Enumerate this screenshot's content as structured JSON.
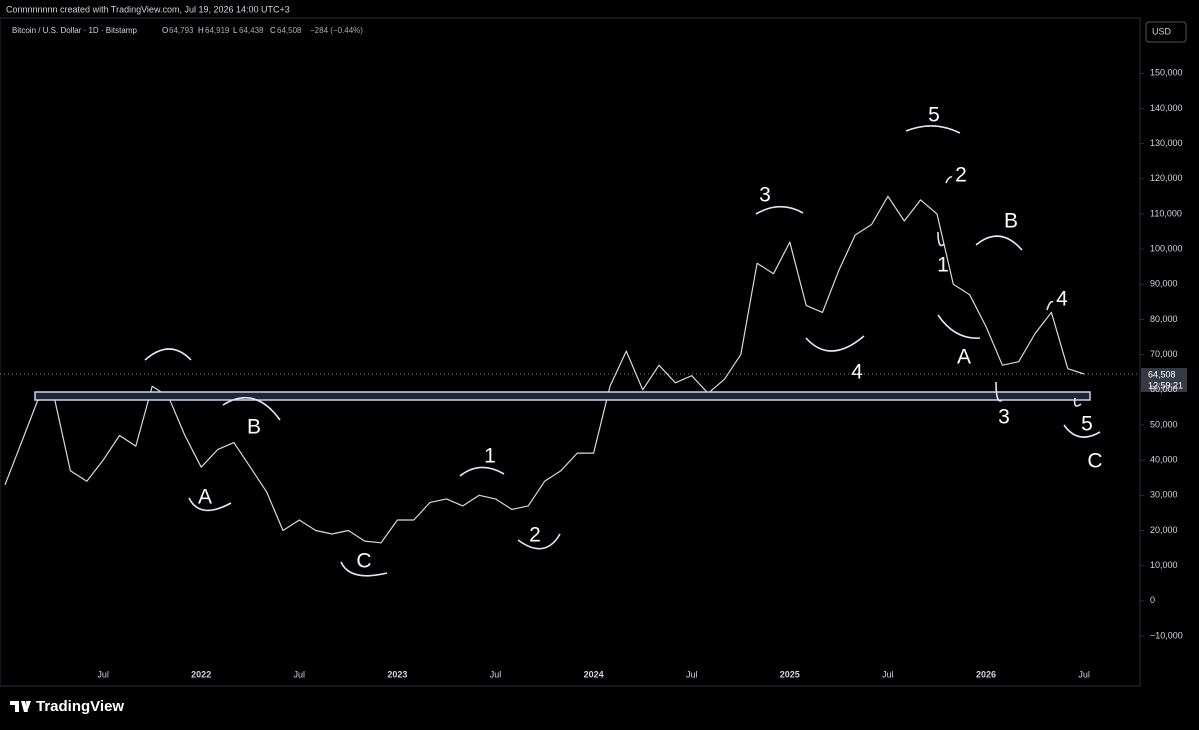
{
  "header": {
    "credit": "Connnnnnnn created with TradingView.com, Jul 19, 2026 14:00 UTC+3",
    "symbol": "Bitcoin / U.S. Dollar · 1D · Bitstamp",
    "ohlc": [
      "O",
      "64,793",
      "H",
      "64,919",
      "L",
      "64,438",
      "C",
      "64,508"
    ],
    "change": "−284 (−0.44%)",
    "currency": "USD",
    "last_price": "64,508",
    "countdown": "12:59:21"
  },
  "footer": {
    "brand": "TradingView"
  },
  "chart_data": {
    "type": "line",
    "categories": [
      null,
      null,
      null,
      null,
      null,
      null,
      "Jul",
      null,
      null,
      null,
      null,
      null,
      "2022",
      null,
      null,
      null,
      null,
      null,
      "Jul",
      null,
      null,
      null,
      null,
      null,
      "2023",
      null,
      null,
      null,
      null,
      null,
      "Jul",
      null,
      null,
      null,
      null,
      null,
      "2024",
      null,
      null,
      null,
      null,
      null,
      "Jul",
      null,
      null,
      null,
      null,
      null,
      "2025",
      null,
      null,
      null,
      null,
      null,
      "Jul",
      null,
      null,
      null,
      null,
      null,
      "2026",
      null,
      null,
      null,
      null,
      null,
      "Jul"
    ],
    "series": [
      {
        "name": "Bitcoin / U.S. Dollar",
        "color": "#d9d9d9",
        "values": [
          33000,
          45000,
          57000,
          58000,
          37000,
          34000,
          40000,
          47000,
          44000,
          61000,
          58000,
          47000,
          38000,
          43000,
          45000,
          38000,
          31000,
          20000,
          23000,
          20000,
          19000,
          20000,
          17000,
          16500,
          23000,
          23000,
          28000,
          29000,
          27000,
          30000,
          29000,
          26000,
          27000,
          34000,
          37000,
          42000,
          42000,
          61000,
          71000,
          60000,
          67000,
          62000,
          64000,
          59000,
          63000,
          70000,
          96000,
          93000,
          102000,
          84000,
          82000,
          94000,
          104000,
          107000,
          115000,
          108000,
          114000,
          110000,
          90000,
          87000,
          78000,
          67000,
          68000,
          76000,
          82000,
          66000,
          64500
        ]
      }
    ],
    "ylim": [
      -24200,
      165700
    ],
    "yticks": [
      {
        "value": -10000,
        "label": "−10,000"
      },
      0,
      {
        "value": 10000,
        "label": "10,000"
      },
      {
        "value": 20000,
        "label": "20,000"
      },
      {
        "value": 30000,
        "label": "30,000"
      },
      {
        "value": 40000,
        "label": "40,000"
      },
      {
        "value": 50000,
        "label": "50,000"
      },
      {
        "value": 60000,
        "label": "60,000"
      },
      {
        "value": 70000,
        "label": "70,000"
      },
      {
        "value": 80000,
        "label": "80,000"
      },
      {
        "value": 90000,
        "label": "90,000"
      },
      {
        "value": 100000,
        "label": "100,000"
      },
      {
        "value": 110000,
        "label": "110,000"
      },
      {
        "value": 120000,
        "label": "120,000"
      },
      {
        "value": 130000,
        "label": "130,000"
      },
      {
        "value": 140000,
        "label": "140,000"
      },
      {
        "value": 150000,
        "label": "150,000"
      }
    ],
    "annotations": [
      "5",
      "2",
      "3",
      "B",
      "1",
      "4",
      "A",
      "4",
      "3",
      "5",
      "C",
      "B",
      "A",
      "1",
      "2",
      "C"
    ]
  }
}
